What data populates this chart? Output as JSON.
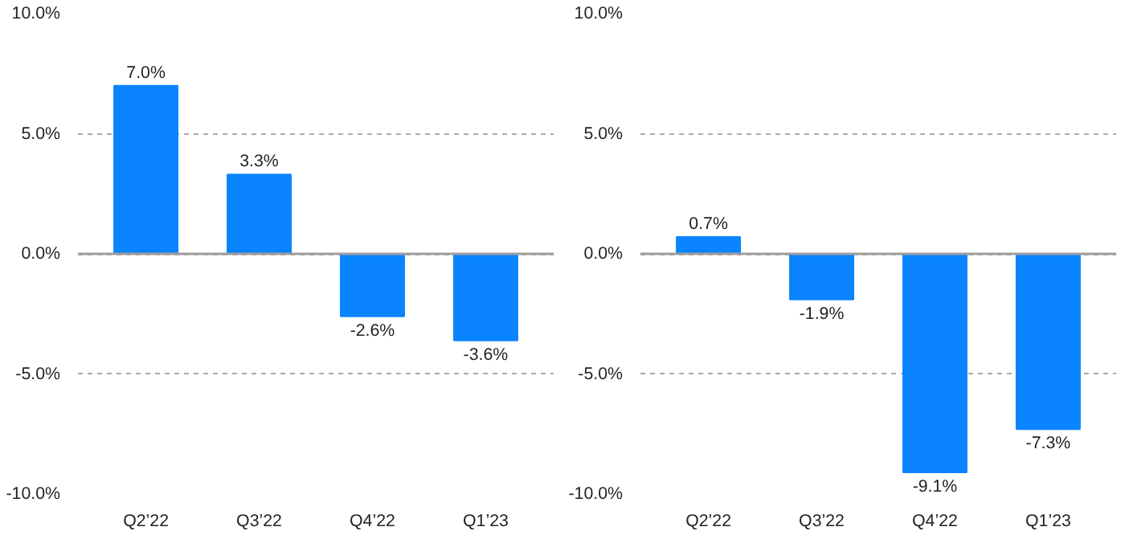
{
  "chart_data": [
    {
      "type": "bar",
      "categories": [
        "Q2’22",
        "Q3’22",
        "Q4’22",
        "Q1’23"
      ],
      "values": [
        7.0,
        3.3,
        -2.6,
        -3.6
      ],
      "value_labels": [
        "7.0%",
        "3.3%",
        "-2.6%",
        "-3.6%"
      ],
      "color": "#0a84ff",
      "ylim": [
        -10,
        10
      ],
      "yticks": [
        {
          "value": -10,
          "label": "-10.0%"
        },
        {
          "value": -5,
          "label": "-5.0%"
        },
        {
          "value": 0,
          "label": "0.0%"
        },
        {
          "value": 5,
          "label": "5.0%"
        },
        {
          "value": 10,
          "label": "10.0%"
        }
      ],
      "grid": "y",
      "ref_lines": [
        {
          "axis": "y",
          "value": 0,
          "color": "#9e9e9e",
          "line_style": "solid"
        }
      ]
    },
    {
      "type": "bar",
      "categories": [
        "Q2’22",
        "Q3’22",
        "Q4’22",
        "Q1’23"
      ],
      "values": [
        0.7,
        -1.9,
        -9.1,
        -7.3
      ],
      "value_labels": [
        "0.7%",
        "-1.9%",
        "-9.1%",
        "-7.3%"
      ],
      "color": "#0a84ff",
      "ylim": [
        -10,
        10
      ],
      "yticks": [
        {
          "value": -10,
          "label": "-10.0%"
        },
        {
          "value": -5,
          "label": "-5.0%"
        },
        {
          "value": 0,
          "label": "0.0%"
        },
        {
          "value": 5,
          "label": "5.0%"
        },
        {
          "value": 10,
          "label": "10.0%"
        }
      ],
      "grid": "y",
      "ref_lines": [
        {
          "axis": "y",
          "value": 0,
          "color": "#9e9e9e",
          "line_style": "solid"
        }
      ]
    }
  ]
}
